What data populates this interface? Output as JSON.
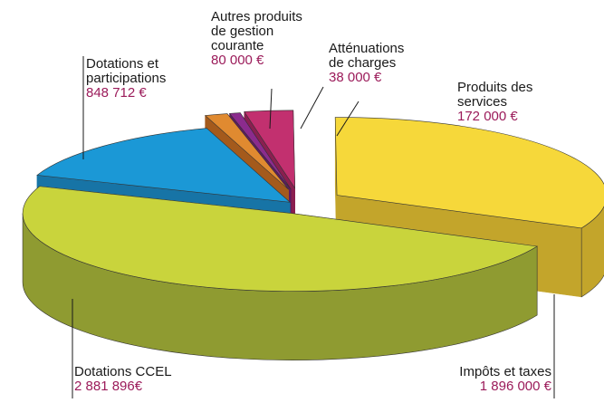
{
  "chart_data": {
    "type": "pie",
    "categories": [
      "Dotations CCEL",
      "Dotations et participations",
      "Autres produits de gestion courante",
      "Atténuations de charges",
      "Produits des services",
      "Impôts et taxes"
    ],
    "values": [
      2881896,
      848712,
      80000,
      38000,
      172000,
      1896000
    ],
    "value_labels": [
      "2 881 896€",
      "848 712 €",
      "80 000 €",
      "38 000 €",
      "172 000 €",
      "1 896 000 €"
    ],
    "colors": [
      "#c9d43c",
      "#1b98d6",
      "#e08a30",
      "#8b2b8d",
      "#c2306f",
      "#f6d83a"
    ],
    "side_colors": [
      "#8f9b31",
      "#1774a6",
      "#a45a1c",
      "#5e1a62",
      "#8a1f50",
      "#c3a52b"
    ]
  }
}
